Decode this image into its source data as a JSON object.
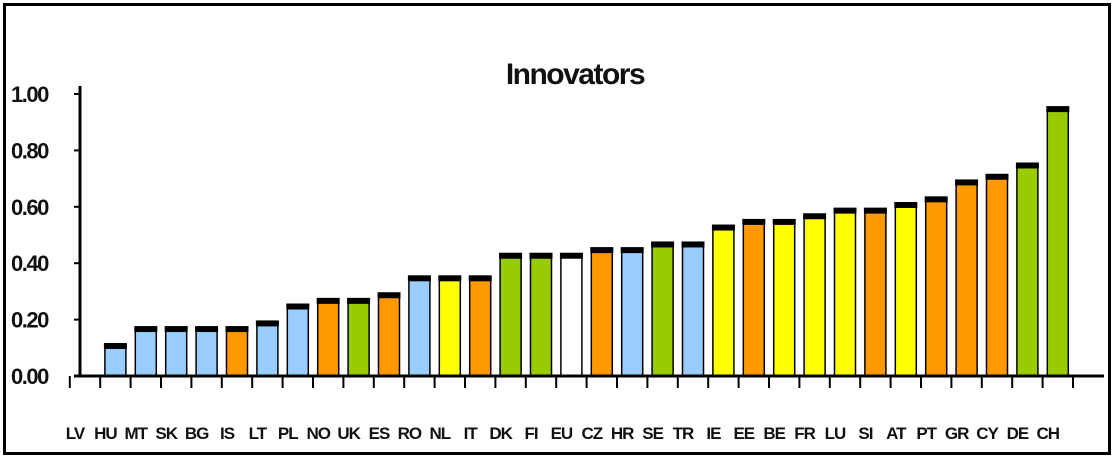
{
  "chart_data": {
    "type": "bar",
    "title": "Innovators",
    "xlabel": "",
    "ylabel": "",
    "ylim": [
      0,
      1.0
    ],
    "yticks": [
      "0.00",
      "0.20",
      "0.40",
      "0.60",
      "0.80",
      "1.00"
    ],
    "grid": false,
    "legend": "none",
    "categories": [
      "LV",
      "HU",
      "MT",
      "SK",
      "BG",
      "IS",
      "LT",
      "PL",
      "NO",
      "UK",
      "ES",
      "RO",
      "NL",
      "IT",
      "DK",
      "FI",
      "EU",
      "CZ",
      "HR",
      "SE",
      "TR",
      "IE",
      "EE",
      "BE",
      "FR",
      "LU",
      "SI",
      "AT",
      "PT",
      "GR",
      "CY",
      "DE",
      "CH"
    ],
    "values": [
      null,
      0.11,
      0.17,
      0.17,
      0.17,
      0.17,
      0.19,
      0.25,
      0.27,
      0.27,
      0.29,
      0.35,
      0.35,
      0.35,
      0.43,
      0.43,
      0.43,
      0.45,
      0.45,
      0.47,
      0.47,
      0.53,
      0.55,
      0.55,
      0.57,
      0.59,
      0.59,
      0.61,
      0.63,
      0.69,
      0.71,
      0.75,
      0.95
    ],
    "bar_colors": [
      "#99ccff",
      "#99ccff",
      "#99ccff",
      "#99ccff",
      "#99ccff",
      "#ff9900",
      "#99ccff",
      "#99ccff",
      "#ff9900",
      "#99cc00",
      "#ff9900",
      "#99ccff",
      "#ffff00",
      "#ff9900",
      "#99cc00",
      "#99cc00",
      "#ffffff",
      "#ff9900",
      "#99ccff",
      "#99cc00",
      "#99ccff",
      "#ffff00",
      "#ff9900",
      "#ffff00",
      "#ffff00",
      "#ffff00",
      "#ff9900",
      "#ffff00",
      "#ff9900",
      "#ff9900",
      "#ff9900",
      "#99cc00",
      "#99cc00"
    ]
  }
}
